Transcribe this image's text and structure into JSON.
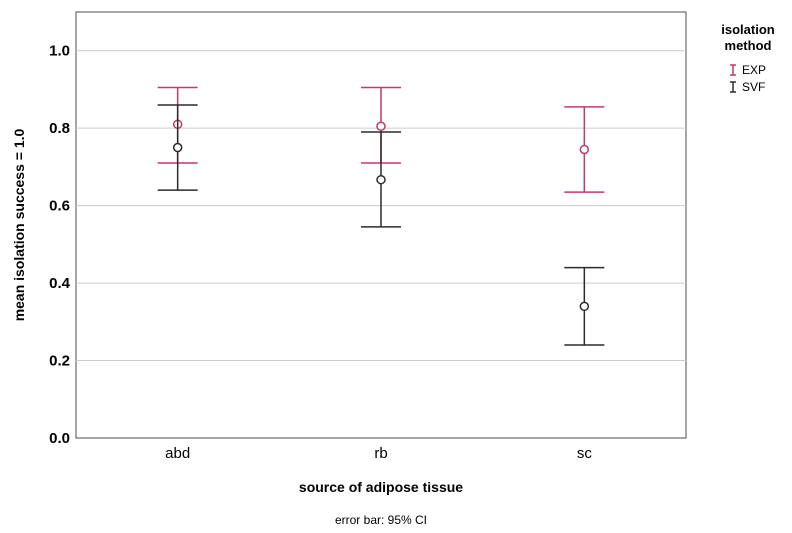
{
  "chart_data": {
    "type": "scatter",
    "title": "",
    "xlabel": "source of adipose tissue",
    "ylabel": "mean isolation success = 1.0",
    "categories": [
      "abd",
      "rb",
      "sc"
    ],
    "ylim": [
      0,
      1.1
    ],
    "yticks": [
      "0.0",
      "0.2",
      "0.4",
      "0.6",
      "0.8",
      "1.0"
    ],
    "grid": "horizontal",
    "legend_title_lines": [
      "isolation",
      "method"
    ],
    "legend_position": "top-right",
    "footnote": "error bar: 95% CI",
    "series": [
      {
        "name": "EXP",
        "color": "#c0396f",
        "values": [
          0.81,
          0.805,
          0.745
        ],
        "ci_low": [
          0.71,
          0.71,
          0.635
        ],
        "ci_high": [
          0.905,
          0.905,
          0.855
        ]
      },
      {
        "name": "SVF",
        "color": "#2b2b2b",
        "values": [
          0.75,
          0.667,
          0.34
        ],
        "ci_low": [
          0.64,
          0.545,
          0.24
        ],
        "ci_high": [
          0.86,
          0.79,
          0.44
        ]
      }
    ]
  }
}
